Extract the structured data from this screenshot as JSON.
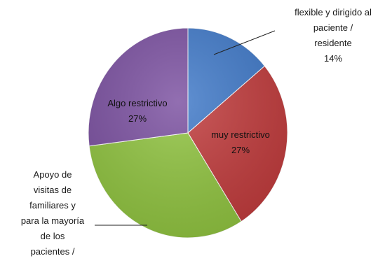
{
  "chart_data": {
    "type": "pie",
    "title": "",
    "slices": [
      {
        "label_lines": [
          "flexible y dirigido al",
          "paciente /",
          "residente",
          "14%"
        ],
        "value": 14,
        "color": "#3e78c8",
        "label_pos": "outside-top-right"
      },
      {
        "label_lines": [
          "muy restrictivo",
          "27%"
        ],
        "value": 27,
        "color": "#c0393a",
        "label_pos": "inside"
      },
      {
        "label_lines": [
          "Apoyo de",
          "visitas de",
          "familiares y",
          "para la mayoría",
          "de los",
          "pacientes /"
        ],
        "value": 32,
        "color": "#8fc33e",
        "label_pos": "outside-bottom-left"
      },
      {
        "label_lines": [
          "Algo restrictivo",
          "27%"
        ],
        "value": 27,
        "color": "#7a4fa0",
        "label_pos": "inside"
      }
    ],
    "legend": "none"
  }
}
